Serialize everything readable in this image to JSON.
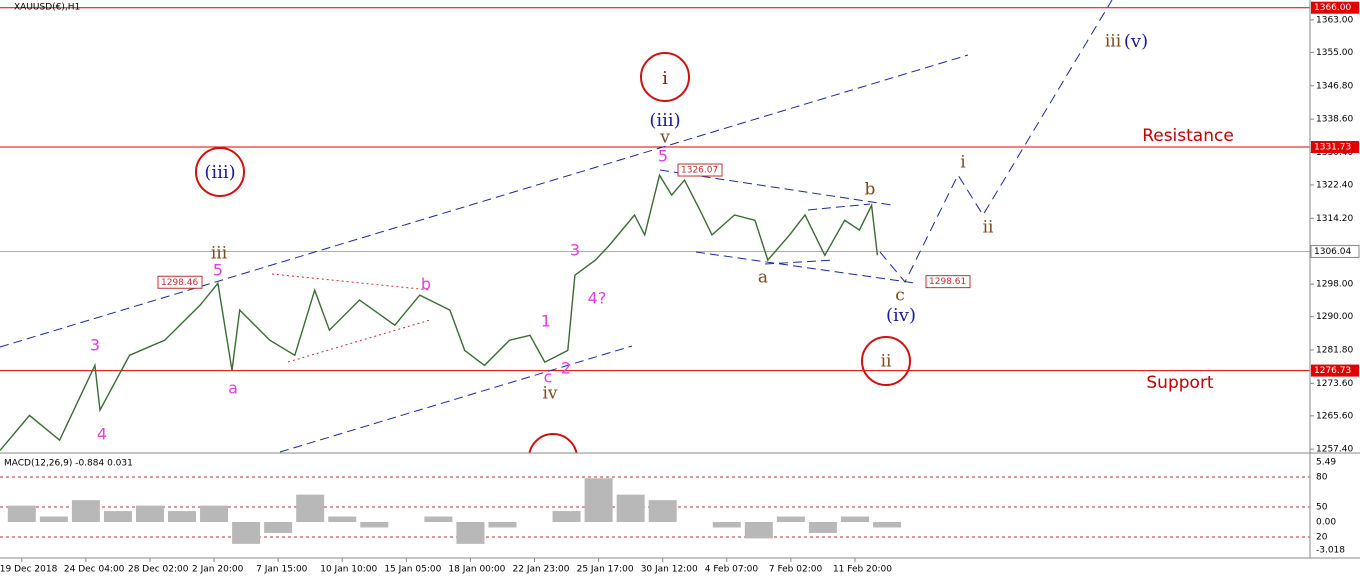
{
  "chart_data": {
    "type": "line",
    "symbol": "XAUUSD(€),H1",
    "xlim": [
      -0.34,
      20.1
    ],
    "xticks": [
      {
        "value": 0,
        "label": "19 Dec 2018"
      },
      {
        "value": 1,
        "label": "24 Dec 04:00"
      },
      {
        "value": 2,
        "label": "28 Dec 02:00"
      },
      {
        "value": 3,
        "label": "2 Jan 20:00"
      },
      {
        "value": 4,
        "label": "7 Jan 15:00"
      },
      {
        "value": 5,
        "label": "10 Jan 10:00"
      },
      {
        "value": 6,
        "label": "15 Jan 05:00"
      },
      {
        "value": 7,
        "label": "18 Jan 00:00"
      },
      {
        "value": 8,
        "label": "22 Jan 23:00"
      },
      {
        "value": 9,
        "label": "25 Jan 17:00"
      },
      {
        "value": 10,
        "label": "30 Jan 12:00"
      },
      {
        "value": 11,
        "label": "4 Feb 07:00"
      },
      {
        "value": 12,
        "label": "7 Feb 02:00"
      },
      {
        "value": 13,
        "label": "11 Feb 20:00"
      }
    ],
    "ylim": [
      1256.7,
      1367.9
    ],
    "yticks": [
      {
        "value": 1363,
        "label": "1363.00"
      },
      {
        "value": 1355,
        "label": "1355.00"
      },
      {
        "value": 1346.8,
        "label": "1346.80"
      },
      {
        "value": 1338.6,
        "label": "1338.60"
      },
      {
        "value": 1330.4,
        "label": "1330.40"
      },
      {
        "value": 1322.4,
        "label": "1322.40"
      },
      {
        "value": 1314.2,
        "label": "1314.20"
      },
      {
        "value": 1306,
        "label": "1306.00"
      },
      {
        "value": 1298,
        "label": "1298.00"
      },
      {
        "value": 1290,
        "label": "1290.00"
      },
      {
        "value": 1281.8,
        "label": "1281.80"
      },
      {
        "value": 1273.6,
        "label": "1273.60"
      },
      {
        "value": 1265.6,
        "label": "1265.60"
      },
      {
        "value": 1257.4,
        "label": "1257.40"
      }
    ],
    "levels": [
      {
        "value": 1366,
        "label": "1366.00",
        "color": "#e00000"
      },
      {
        "value": 1331.73,
        "label": "1331.73",
        "color": "#e00000"
      },
      {
        "value": 1306.04,
        "label": "1306.04",
        "color": "#b0b0b0"
      },
      {
        "value": 1276.73,
        "label": "1276.73",
        "color": "#e00000"
      }
    ],
    "price_boxes": [
      1298.46,
      1326.07,
      1298.61
    ],
    "series": [
      {
        "name": "XAUUSD",
        "color": "#3a6b35",
        "x": [
          -0.34,
          0.12,
          0.59,
          1.14,
          1.22,
          1.68,
          2.23,
          2.78,
          3.06,
          3.28,
          3.4,
          3.87,
          4.26,
          4.57,
          4.8,
          5.27,
          5.82,
          6.21,
          6.68,
          6.91,
          7.22,
          7.61,
          7.93,
          8.16,
          8.52,
          8.63,
          8.95,
          9.17,
          9.56,
          9.72,
          9.95,
          10.14,
          10.34,
          10.58,
          10.77,
          11.12,
          11.44,
          11.64,
          11.98,
          12.22,
          12.53,
          12.84,
          13.07,
          13.26,
          13.35
        ],
        "values": [
          1257.1,
          1265.7,
          1259.6,
          1278.0,
          1267.0,
          1280.5,
          1284.2,
          1292.8,
          1298.2,
          1276.8,
          1291.6,
          1284.2,
          1280.5,
          1296.5,
          1286.7,
          1294.1,
          1287.9,
          1295.3,
          1291.6,
          1281.7,
          1278.0,
          1284.2,
          1285.4,
          1278.8,
          1281.7,
          1300.2,
          1303.9,
          1307.6,
          1315.0,
          1310.1,
          1324.8,
          1319.9,
          1323.6,
          1316.2,
          1310.1,
          1315.0,
          1313.7,
          1303.9,
          1310.1,
          1315.0,
          1305.1,
          1313.7,
          1311.3,
          1317.4,
          1305.1
        ]
      }
    ],
    "annotations": [
      "i",
      "(iii)",
      "ii",
      "(iii)",
      "v",
      "5",
      "iii",
      "5",
      "3",
      "4",
      "a",
      "b",
      "1",
      "2",
      "c",
      "iv",
      "3",
      "4?",
      "b",
      "a",
      "c",
      "(iv)",
      "i",
      "ii",
      "iii",
      "(v)",
      "Resistance",
      "Support"
    ],
    "macd": {
      "title": "MACD(12,26,9) -0.884 0.031",
      "axis_labels": [
        "5.49",
        "80",
        "50",
        "0.00",
        "20",
        "-3.018"
      ],
      "ylim": [
        -3.11,
        6.13
      ],
      "color": "#b8b8b8",
      "x": [
        0,
        0.5,
        1,
        1.5,
        2,
        2.5,
        3,
        3.5,
        4,
        4.5,
        5,
        5.5,
        6,
        6.5,
        7,
        7.5,
        8,
        8.5,
        9,
        9.5,
        10,
        10.5,
        11,
        11.5,
        12,
        12.5,
        13,
        13.5
      ],
      "values": [
        1.5,
        0.5,
        2,
        1,
        1.5,
        1,
        1.5,
        -2,
        -1,
        2.5,
        0.5,
        -0.5,
        0,
        0.5,
        -2,
        -0.5,
        0,
        1,
        4,
        2.5,
        2,
        0,
        -0.5,
        -1.5,
        0.5,
        -1,
        0.5,
        -0.5
      ]
    }
  }
}
